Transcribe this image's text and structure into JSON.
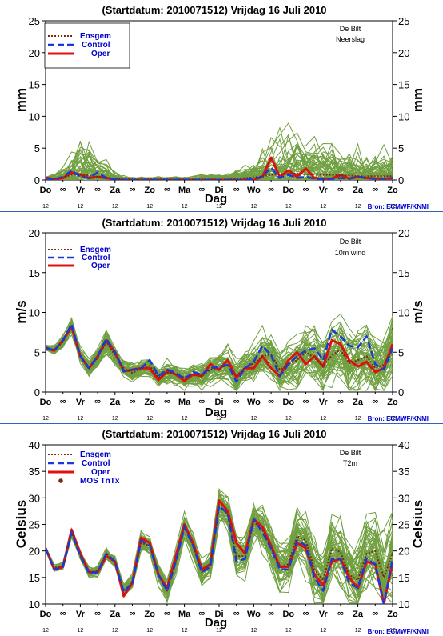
{
  "colors": {
    "ensemble": "#70a040",
    "ensgem": "#7a2a10",
    "control": "#1a3ad8",
    "oper": "#e01010",
    "separator": "#3060c0",
    "legend_text": "#0000cc",
    "source_text": "#0000cc",
    "mos_marker": "#7a2a10"
  },
  "x_axis": {
    "label": "Dag",
    "days": [
      "Do",
      "Vr",
      "Za",
      "Zo",
      "Ma",
      "Di",
      "Wo",
      "Do",
      "Vr",
      "Za",
      "Zo"
    ],
    "day_positions": [
      0,
      2,
      4,
      6,
      8,
      10,
      12,
      14,
      16,
      18,
      20
    ],
    "midnight_symbol": "∞",
    "midnight_positions": [
      1,
      3,
      5,
      7,
      9,
      11,
      13,
      15,
      17,
      19
    ],
    "hour_label": "12",
    "hour_positions": [
      0,
      2,
      4,
      6,
      8,
      10,
      12,
      14,
      16,
      18,
      20
    ],
    "range": [
      0,
      20
    ],
    "unit_note": "half-day steps from Thursday 15 July 12 UTC"
  },
  "chart_data": [
    {
      "id": "precip",
      "type": "line",
      "title": "(Startdatum: 2010071512)   Vrijdag   16 Juli      2010",
      "ylabel": "mm",
      "ylim": [
        0,
        25
      ],
      "yticks": [
        0,
        5,
        10,
        15,
        20,
        25
      ],
      "station": "De Bilt",
      "variable": "Neerslag",
      "source": "Bron: ECMWF/KNMI",
      "legend": {
        "placement": "top-left",
        "entries": [
          "Ensgem",
          "Control",
          "Oper"
        ]
      },
      "ensemble": {
        "members": 50,
        "clip_min": 0,
        "variance": 0.6,
        "spread": [
          0.3,
          0.5,
          1.2,
          1.8,
          3.5,
          3.2,
          1.8,
          1.2,
          0.5,
          0.3,
          0.2,
          0.3,
          0.2,
          0.2,
          0.2,
          0.3,
          0.2,
          0.2,
          0.5,
          0.5,
          0.5,
          0.5,
          0.8,
          1.0,
          1.5,
          2.5,
          3.5,
          4.0,
          4.5,
          4.0,
          3.5,
          3.5,
          3.0,
          3.0,
          2.5,
          2.5,
          2.5,
          2.5,
          2.5,
          2.5,
          2.5
        ],
        "seed": 11
      },
      "series": [
        {
          "name": "Ensgem",
          "values": [
            0.2,
            0.2,
            0.4,
            0.8,
            0.9,
            0.7,
            0.5,
            0.4,
            0.2,
            0.1,
            0.1,
            0.1,
            0.1,
            0.1,
            0.1,
            0.1,
            0.1,
            0.1,
            0.1,
            0.1,
            0.1,
            0.1,
            0.2,
            0.3,
            0.4,
            0.6,
            0.8,
            0.9,
            1.0,
            1.0,
            0.9,
            0.9,
            0.8,
            0.8,
            0.7,
            0.7,
            0.6,
            0.6,
            0.6,
            0.6,
            0.6
          ]
        },
        {
          "name": "Control",
          "values": [
            0.2,
            0.1,
            0.5,
            1.5,
            0.5,
            0.3,
            1.2,
            0.3,
            0.1,
            0.0,
            0.0,
            0.0,
            0.0,
            0.0,
            0.0,
            0.0,
            0.0,
            0.0,
            0.0,
            0.0,
            0.0,
            0.0,
            0.0,
            0.0,
            0.2,
            0.5,
            2.0,
            0.3,
            0.8,
            0.3,
            0.5,
            0.2,
            0.1,
            0.2,
            0.3,
            0.2,
            0.5,
            0.3,
            0.2,
            0.2,
            0.3
          ]
        },
        {
          "name": "Oper",
          "values": [
            0.4,
            0.1,
            0.3,
            1.2,
            0.8,
            0.3,
            0.5,
            0.3,
            0.1,
            0.0,
            0.0,
            0.0,
            0.0,
            0.0,
            0.0,
            0.0,
            0.0,
            0.0,
            0.0,
            0.0,
            0.0,
            0.0,
            0.0,
            0.0,
            0.0,
            0.5,
            3.5,
            0.5,
            1.5,
            0.5,
            1.8,
            0.3,
            0.2,
            0.2,
            0.8,
            0.2,
            0.5,
            0.3,
            0.2,
            0.2,
            0.2
          ]
        }
      ]
    },
    {
      "id": "wind",
      "type": "line",
      "title": "(Startdatum: 2010071512)   Vrijdag   16 Juli      2010",
      "ylabel": "m/s",
      "ylim": [
        0,
        20
      ],
      "yticks": [
        0,
        5,
        10,
        15,
        20
      ],
      "station": "De Bilt",
      "variable": "10m wind",
      "source": "Bron: ECMWF/KNMI",
      "legend": {
        "placement": "top-left",
        "entries": [
          "Ensgem",
          "Control",
          "Oper"
        ]
      },
      "ensemble": {
        "members": 50,
        "clip_min": 0.2,
        "variance": 0,
        "spread": [
          0.3,
          0.4,
          0.6,
          0.7,
          0.8,
          0.8,
          0.8,
          0.9,
          0.9,
          0.9,
          1.0,
          1.0,
          1.0,
          1.0,
          1.1,
          1.1,
          1.1,
          1.2,
          1.3,
          1.4,
          1.5,
          1.6,
          1.7,
          1.8,
          1.9,
          2.0,
          2.1,
          2.2,
          2.3,
          2.4,
          2.5,
          2.6,
          2.7,
          2.8,
          2.9,
          3.0,
          3.0,
          3.1,
          3.1,
          3.2,
          3.2
        ],
        "seed": 22
      },
      "series": [
        {
          "name": "Ensgem",
          "values": [
            5.6,
            5.3,
            6.3,
            8.3,
            4.6,
            3.0,
            4.3,
            6.3,
            4.6,
            3.0,
            2.4,
            3.0,
            3.3,
            1.8,
            2.4,
            2.3,
            1.8,
            2.3,
            2.0,
            2.8,
            3.0,
            3.4,
            2.0,
            3.1,
            3.6,
            4.5,
            4.7,
            2.8,
            3.5,
            4.0,
            5.0,
            4.3,
            3.2,
            4.6,
            5.3,
            3.6,
            4.0,
            4.5,
            3.0,
            3.4,
            5.4
          ]
        },
        {
          "name": "Control",
          "values": [
            5.6,
            5.2,
            6.5,
            8.5,
            4.5,
            3.0,
            4.5,
            6.7,
            5.0,
            2.6,
            2.8,
            3.0,
            4.0,
            2.0,
            2.8,
            2.4,
            1.6,
            2.5,
            2.2,
            3.0,
            3.2,
            3.4,
            1.3,
            3.0,
            3.8,
            5.8,
            4.6,
            2.0,
            3.5,
            4.5,
            5.2,
            5.5,
            4.0,
            7.8,
            7.0,
            5.8,
            5.6,
            7.0,
            3.5,
            2.8,
            5.5
          ]
        },
        {
          "name": "Oper",
          "values": [
            5.5,
            5.2,
            6.5,
            8.2,
            4.5,
            3.0,
            4.5,
            6.5,
            5.0,
            2.6,
            2.8,
            3.0,
            3.0,
            1.5,
            2.6,
            2.2,
            1.4,
            2.2,
            2.0,
            3.5,
            2.8,
            4.0,
            1.8,
            3.0,
            3.0,
            4.5,
            3.0,
            2.0,
            4.0,
            5.0,
            3.5,
            4.5,
            3.2,
            6.5,
            6.0,
            4.0,
            3.2,
            3.8,
            2.5,
            3.0,
            6.0
          ]
        }
      ]
    },
    {
      "id": "temp",
      "type": "line",
      "title": "(Startdatum: 2010071512)   Vrijdag   16 Juli      2010",
      "ylabel": "Celsius",
      "ylim": [
        10,
        40
      ],
      "yticks": [
        10,
        15,
        20,
        25,
        30,
        35,
        40
      ],
      "station": "De Bilt",
      "variable": "T2m",
      "source": "Bron: ECMWF/KNMI",
      "legend": {
        "placement": "top-left",
        "entries": [
          "Ensgem",
          "Control",
          "Oper",
          "MOS TnTx"
        ]
      },
      "ensemble": {
        "members": 50,
        "clip_min": 10.2,
        "variance": 0,
        "spread": [
          0.3,
          0.4,
          0.5,
          0.6,
          0.7,
          0.8,
          0.8,
          0.9,
          1.0,
          1.0,
          1.1,
          1.2,
          1.3,
          1.4,
          1.5,
          1.6,
          1.7,
          1.8,
          1.9,
          2.0,
          2.2,
          2.4,
          2.6,
          2.8,
          3.0,
          3.2,
          3.4,
          3.6,
          3.8,
          4.0,
          4.2,
          4.4,
          4.6,
          4.8,
          5.0,
          5.2,
          5.4,
          5.6,
          5.8,
          6.0,
          6.2
        ],
        "seed": 33
      },
      "series": [
        {
          "name": "Ensgem",
          "values": [
            20.5,
            16.8,
            17.2,
            23.5,
            19.2,
            16.0,
            16.2,
            19.5,
            18.0,
            12.5,
            14.0,
            21.5,
            21.0,
            15.5,
            12.5,
            18.0,
            24.8,
            21.0,
            16.0,
            17.5,
            28.5,
            27.0,
            19.0,
            19.0,
            25.5,
            24.0,
            20.5,
            17.0,
            17.5,
            22.8,
            22.0,
            16.5,
            14.5,
            20.5,
            19.8,
            15.5,
            14.5,
            19.5,
            20.0,
            15.0,
            19.5
          ]
        },
        {
          "name": "Control",
          "values": [
            20.5,
            16.5,
            17.0,
            23.5,
            19.0,
            15.8,
            16.0,
            19.5,
            18.0,
            12.2,
            14.0,
            22.0,
            21.0,
            15.5,
            12.5,
            18.0,
            24.5,
            21.0,
            16.0,
            17.0,
            28.5,
            27.0,
            18.0,
            18.5,
            26.0,
            23.5,
            20.5,
            16.5,
            16.5,
            22.0,
            21.0,
            15.0,
            12.5,
            18.5,
            18.5,
            14.0,
            13.0,
            18.5,
            17.5,
            10.0,
            18.5
          ]
        },
        {
          "name": "Oper",
          "values": [
            20.5,
            16.5,
            17.0,
            24.0,
            19.5,
            16.0,
            16.0,
            19.0,
            18.0,
            11.5,
            14.0,
            22.5,
            21.5,
            15.5,
            13.0,
            19.0,
            25.0,
            21.5,
            16.5,
            17.5,
            29.5,
            27.5,
            21.5,
            19.5,
            26.0,
            24.5,
            21.0,
            17.0,
            17.0,
            21.5,
            20.5,
            15.5,
            13.5,
            18.0,
            18.5,
            15.0,
            13.0,
            18.0,
            17.5,
            10.0,
            18.0
          ]
        }
      ]
    }
  ]
}
